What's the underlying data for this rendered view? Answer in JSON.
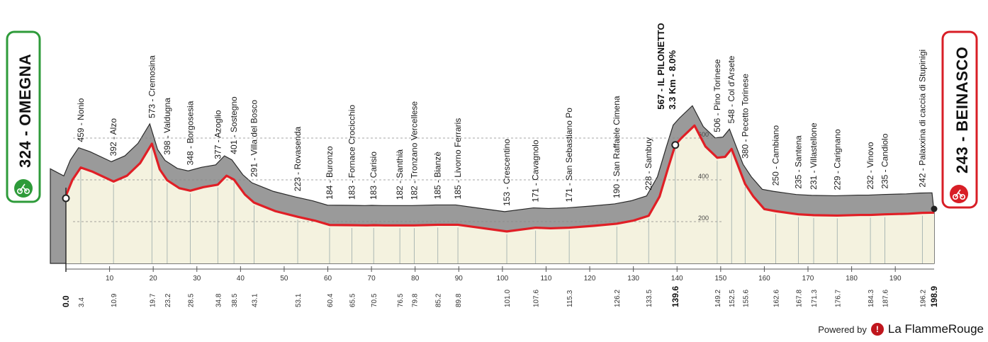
{
  "start": {
    "altitude": "324",
    "name": "OMEGNA",
    "label": "324 - OMEGNA",
    "color": "#2e9b3a"
  },
  "finish": {
    "altitude": "243",
    "name": "BEINASCO",
    "label": "243 - BEINASCO",
    "color": "#d81e26"
  },
  "footer": {
    "powered_by": "Powered by",
    "brand": "La FlammeRouge"
  },
  "colors": {
    "profile_line": "#e01f26",
    "road_fill": "#9a9a9a",
    "area_fill": "#f4f2df"
  },
  "chart_data": {
    "type": "area",
    "title": "",
    "xlabel": "",
    "ylabel": "",
    "xlim": [
      0,
      198.9
    ],
    "ylim": [
      0,
      700
    ],
    "y_gridlines": [
      200,
      400,
      600
    ],
    "x_ticks": [
      10,
      20,
      30,
      40,
      50,
      60,
      70,
      80,
      90,
      100,
      110,
      120,
      130,
      140,
      150,
      160,
      170,
      180,
      190
    ],
    "total_distance": "198.9",
    "start_km": "0.0",
    "profile": [
      [
        0,
        324
      ],
      [
        1.5,
        400
      ],
      [
        3.4,
        459
      ],
      [
        6,
        440
      ],
      [
        10.9,
        392
      ],
      [
        14,
        420
      ],
      [
        17,
        480
      ],
      [
        19.7,
        573
      ],
      [
        21.5,
        450
      ],
      [
        23.2,
        398
      ],
      [
        26,
        360
      ],
      [
        28.5,
        348
      ],
      [
        31.5,
        365
      ],
      [
        34.8,
        377
      ],
      [
        36.8,
        420
      ],
      [
        38.5,
        401
      ],
      [
        41,
        330
      ],
      [
        43.1,
        291
      ],
      [
        48,
        250
      ],
      [
        53.1,
        223
      ],
      [
        57,
        205
      ],
      [
        60.4,
        184
      ],
      [
        65.5,
        183
      ],
      [
        69,
        182
      ],
      [
        70.5,
        183
      ],
      [
        73,
        182
      ],
      [
        76.5,
        182
      ],
      [
        79.8,
        182
      ],
      [
        85.2,
        185
      ],
      [
        89.8,
        185
      ],
      [
        95,
        170
      ],
      [
        101,
        153
      ],
      [
        107.6,
        171
      ],
      [
        111,
        168
      ],
      [
        115.3,
        171
      ],
      [
        121,
        180
      ],
      [
        126.2,
        190
      ],
      [
        130,
        205
      ],
      [
        133.5,
        228
      ],
      [
        136,
        320
      ],
      [
        138,
        460
      ],
      [
        139.6,
        567
      ],
      [
        141,
        600
      ],
      [
        144,
        660
      ],
      [
        146.5,
        560
      ],
      [
        149.2,
        506
      ],
      [
        151,
        510
      ],
      [
        152.5,
        548
      ],
      [
        155.6,
        380
      ],
      [
        157.5,
        320
      ],
      [
        160,
        260
      ],
      [
        162.6,
        250
      ],
      [
        166,
        240
      ],
      [
        167.8,
        235
      ],
      [
        171.3,
        231
      ],
      [
        176.7,
        229
      ],
      [
        182,
        232
      ],
      [
        184.3,
        232
      ],
      [
        187.6,
        235
      ],
      [
        193,
        238
      ],
      [
        196.2,
        242
      ],
      [
        198.9,
        243
      ]
    ],
    "waypoints": [
      {
        "km": "3.4",
        "kmv": 3.4,
        "alt": "459",
        "name": "Nonio"
      },
      {
        "km": "10.9",
        "kmv": 10.9,
        "alt": "392",
        "name": "Alzo"
      },
      {
        "km": "19.7",
        "kmv": 19.7,
        "alt": "573",
        "name": "Cremosina"
      },
      {
        "km": "23.2",
        "kmv": 23.2,
        "alt": "398",
        "name": "Valdugna"
      },
      {
        "km": "28.5",
        "kmv": 28.5,
        "alt": "348",
        "name": "Borgosesia"
      },
      {
        "km": "34.8",
        "kmv": 34.8,
        "alt": "377",
        "name": "Azoglio"
      },
      {
        "km": "38.5",
        "kmv": 38.5,
        "alt": "401",
        "name": "Sostegno"
      },
      {
        "km": "43.1",
        "kmv": 43.1,
        "alt": "291",
        "name": "Villa del Bosco"
      },
      {
        "km": "53.1",
        "kmv": 53.1,
        "alt": "223",
        "name": "Rovasenda"
      },
      {
        "km": "60.4",
        "kmv": 60.4,
        "alt": "184",
        "name": "Buronzo"
      },
      {
        "km": "65.5",
        "kmv": 65.5,
        "alt": "183",
        "name": "Fornace Crocicchio"
      },
      {
        "km": "70.5",
        "kmv": 70.5,
        "alt": "183",
        "name": "Carisio"
      },
      {
        "km": "76.5",
        "kmv": 76.5,
        "alt": "182",
        "name": "Santhià"
      },
      {
        "km": "79.8",
        "kmv": 79.8,
        "alt": "182",
        "name": "Tronzano Vercellese"
      },
      {
        "km": "85.2",
        "kmv": 85.2,
        "alt": "185",
        "name": "Bianzè"
      },
      {
        "km": "89.8",
        "kmv": 89.8,
        "alt": "185",
        "name": "Livorno Ferraris"
      },
      {
        "km": "101.0",
        "kmv": 101.0,
        "alt": "153",
        "name": "Crescentino"
      },
      {
        "km": "107.6",
        "kmv": 107.6,
        "alt": "171",
        "name": "Cavagnolo"
      },
      {
        "km": "115.3",
        "kmv": 115.3,
        "alt": "171",
        "name": "San Sebastiano Po"
      },
      {
        "km": "126.2",
        "kmv": 126.2,
        "alt": "190",
        "name": "San Raffaele Cimena"
      },
      {
        "km": "133.5",
        "kmv": 133.5,
        "alt": "228",
        "name": "Sambuy"
      },
      {
        "km": "149.2",
        "kmv": 149.2,
        "alt": "506",
        "name": "Pino Torinese"
      },
      {
        "km": "152.5",
        "kmv": 152.5,
        "alt": "548",
        "name": "Col d'Arsete"
      },
      {
        "km": "155.6",
        "kmv": 155.6,
        "alt": "380",
        "name": "Pecetto Torinese"
      },
      {
        "km": "162.6",
        "kmv": 162.6,
        "alt": "250",
        "name": "Cambiano"
      },
      {
        "km": "167.8",
        "kmv": 167.8,
        "alt": "235",
        "name": "Santena"
      },
      {
        "km": "171.3",
        "kmv": 171.3,
        "alt": "231",
        "name": "Villastellone"
      },
      {
        "km": "176.7",
        "kmv": 176.7,
        "alt": "229",
        "name": "Carignano"
      },
      {
        "km": "184.3",
        "kmv": 184.3,
        "alt": "232",
        "name": "Vinovo"
      },
      {
        "km": "187.6",
        "kmv": 187.6,
        "alt": "235",
        "name": "Candiolo"
      },
      {
        "km": "196.2",
        "kmv": 196.2,
        "alt": "242",
        "name": "Palaxxina di caccia di Stupinigi"
      }
    ],
    "climb": {
      "km": "139.6",
      "kmv": 139.6,
      "line1": "567 - IL PILONETTO",
      "line2": "3.3 Km - 8.0%"
    }
  }
}
